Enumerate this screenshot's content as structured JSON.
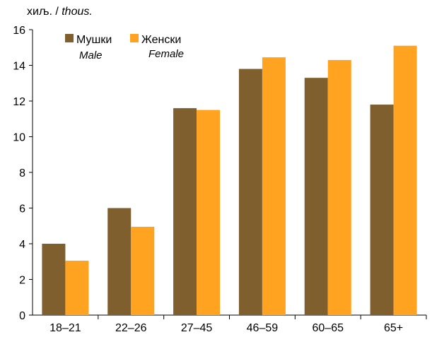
{
  "chart_data": {
    "type": "bar",
    "unit_label": {
      "mk": "хиљ.",
      "separator": " / ",
      "en": "thous."
    },
    "categories": [
      "18–21",
      "22–26",
      "27–45",
      "46–59",
      "60–65",
      "65+"
    ],
    "series": [
      {
        "name": "Мушки",
        "name_en": "Male",
        "color": "#7f5f2e",
        "values": [
          4.0,
          6.0,
          11.6,
          13.8,
          13.3,
          11.8
        ]
      },
      {
        "name": "Женски",
        "name_en": "Female",
        "color": "#ffa320",
        "values": [
          3.05,
          4.95,
          11.5,
          14.45,
          14.3,
          15.1
        ]
      }
    ],
    "ylim": [
      0,
      16
    ],
    "yticks": [
      "0",
      "2",
      "4",
      "6",
      "8",
      "10",
      "12",
      "14",
      "16"
    ],
    "grid": false,
    "legend_position": "top-left"
  }
}
